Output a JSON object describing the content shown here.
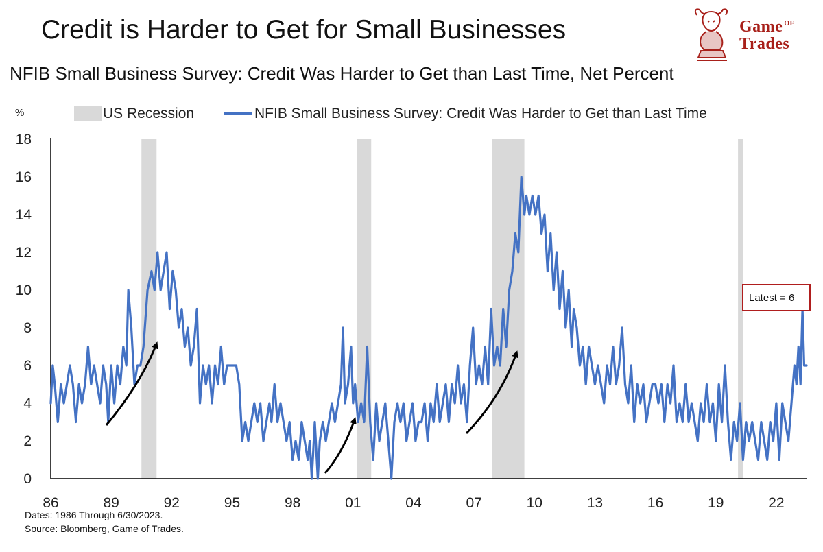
{
  "header": {
    "title": "Credit is Harder to Get for Small Businesses",
    "subtitle": "NFIB Small Business Survey: Credit Was Harder to Get than Last Time, Net Percent"
  },
  "logo": {
    "line1": "Game",
    "of": "OF",
    "line2": "Trades"
  },
  "footer": {
    "dates": "Dates: 1986 Through 6/30/2023.",
    "source": "Source: Bloomberg, Game of Trades."
  },
  "colors": {
    "series": "#4472c4",
    "recession": "#d9d9d9",
    "annotation_border": "#b01e1e",
    "logo": "#a8201a"
  },
  "chart_data": {
    "type": "line",
    "y_unit": "%",
    "ylim": [
      0,
      18
    ],
    "y_ticks": [
      "0",
      "2",
      "4",
      "6",
      "8",
      "10",
      "12",
      "14",
      "16",
      "18"
    ],
    "xlim": [
      1986,
      2023.5
    ],
    "x_ticks": [
      {
        "year": 1986,
        "label": "86"
      },
      {
        "year": 1989,
        "label": "89"
      },
      {
        "year": 1992,
        "label": "92"
      },
      {
        "year": 1995,
        "label": "95"
      },
      {
        "year": 1998,
        "label": "98"
      },
      {
        "year": 2001,
        "label": "01"
      },
      {
        "year": 2004,
        "label": "04"
      },
      {
        "year": 2007,
        "label": "07"
      },
      {
        "year": 2010,
        "label": "10"
      },
      {
        "year": 2013,
        "label": "13"
      },
      {
        "year": 2016,
        "label": "16"
      },
      {
        "year": 2019,
        "label": "19"
      },
      {
        "year": 2022,
        "label": "22"
      }
    ],
    "legend": [
      {
        "label": "US Recession",
        "kind": "band"
      },
      {
        "label": "NFIB Small Business Survey: Credit Was Harder to Get than Last Time",
        "kind": "line"
      }
    ],
    "legend_position": "top",
    "grid": false,
    "recessions": [
      {
        "start": 1990.5,
        "end": 1991.25
      },
      {
        "start": 2001.2,
        "end": 2001.9
      },
      {
        "start": 2007.9,
        "end": 2009.5
      },
      {
        "start": 2020.1,
        "end": 2020.35
      }
    ],
    "series": [
      {
        "name": "NFIB Small Business Survey: Credit Was Harder to Get than Last Time",
        "points": [
          [
            1986.0,
            4
          ],
          [
            1986.1,
            6
          ],
          [
            1986.2,
            5
          ],
          [
            1986.35,
            3
          ],
          [
            1986.5,
            5
          ],
          [
            1986.65,
            4
          ],
          [
            1986.8,
            5
          ],
          [
            1986.95,
            6
          ],
          [
            1987.1,
            5
          ],
          [
            1987.25,
            3
          ],
          [
            1987.4,
            5
          ],
          [
            1987.55,
            4
          ],
          [
            1987.7,
            5
          ],
          [
            1987.85,
            7
          ],
          [
            1988.0,
            5
          ],
          [
            1988.15,
            6
          ],
          [
            1988.3,
            5
          ],
          [
            1988.45,
            4
          ],
          [
            1988.6,
            6
          ],
          [
            1988.75,
            5
          ],
          [
            1988.85,
            3
          ],
          [
            1989.0,
            6
          ],
          [
            1989.15,
            4
          ],
          [
            1989.3,
            6
          ],
          [
            1989.45,
            5
          ],
          [
            1989.6,
            7
          ],
          [
            1989.75,
            6
          ],
          [
            1989.85,
            10
          ],
          [
            1990.0,
            8
          ],
          [
            1990.15,
            5
          ],
          [
            1990.3,
            6
          ],
          [
            1990.45,
            6
          ],
          [
            1990.6,
            7
          ],
          [
            1990.8,
            10
          ],
          [
            1991.0,
            11
          ],
          [
            1991.15,
            10
          ],
          [
            1991.3,
            12
          ],
          [
            1991.45,
            10
          ],
          [
            1991.6,
            11
          ],
          [
            1991.75,
            12
          ],
          [
            1991.9,
            9
          ],
          [
            1992.05,
            11
          ],
          [
            1992.2,
            10
          ],
          [
            1992.35,
            8
          ],
          [
            1992.5,
            9
          ],
          [
            1992.65,
            7
          ],
          [
            1992.8,
            8
          ],
          [
            1992.95,
            6
          ],
          [
            1993.1,
            7
          ],
          [
            1993.25,
            9
          ],
          [
            1993.4,
            4
          ],
          [
            1993.55,
            6
          ],
          [
            1993.7,
            5
          ],
          [
            1993.85,
            6
          ],
          [
            1994.0,
            4
          ],
          [
            1994.15,
            6
          ],
          [
            1994.3,
            5
          ],
          [
            1994.45,
            7
          ],
          [
            1994.6,
            5
          ],
          [
            1994.75,
            6
          ],
          [
            1994.9,
            6
          ],
          [
            1995.05,
            6
          ],
          [
            1995.2,
            6
          ],
          [
            1995.35,
            5
          ],
          [
            1995.5,
            2
          ],
          [
            1995.65,
            3
          ],
          [
            1995.8,
            2
          ],
          [
            1995.95,
            3
          ],
          [
            1996.1,
            4
          ],
          [
            1996.25,
            3
          ],
          [
            1996.4,
            4
          ],
          [
            1996.55,
            2
          ],
          [
            1996.7,
            3
          ],
          [
            1996.85,
            4
          ],
          [
            1996.95,
            3
          ],
          [
            1997.1,
            5
          ],
          [
            1997.25,
            3
          ],
          [
            1997.4,
            4
          ],
          [
            1997.55,
            3
          ],
          [
            1997.7,
            2
          ],
          [
            1997.85,
            3
          ],
          [
            1998.0,
            1
          ],
          [
            1998.15,
            2
          ],
          [
            1998.3,
            1
          ],
          [
            1998.45,
            3
          ],
          [
            1998.6,
            2
          ],
          [
            1998.75,
            1
          ],
          [
            1998.85,
            2
          ],
          [
            1998.95,
            0
          ],
          [
            1999.1,
            3
          ],
          [
            1999.25,
            0
          ],
          [
            1999.35,
            2
          ],
          [
            1999.5,
            3
          ],
          [
            1999.65,
            2
          ],
          [
            1999.8,
            3
          ],
          [
            1999.95,
            4
          ],
          [
            2000.1,
            3
          ],
          [
            2000.25,
            4
          ],
          [
            2000.4,
            5
          ],
          [
            2000.5,
            8
          ],
          [
            2000.6,
            4
          ],
          [
            2000.75,
            5
          ],
          [
            2000.9,
            7
          ],
          [
            2001.0,
            4
          ],
          [
            2001.1,
            5
          ],
          [
            2001.25,
            3
          ],
          [
            2001.4,
            4
          ],
          [
            2001.55,
            3
          ],
          [
            2001.7,
            7
          ],
          [
            2001.85,
            3
          ],
          [
            2002.0,
            1
          ],
          [
            2002.15,
            4
          ],
          [
            2002.3,
            2
          ],
          [
            2002.45,
            3
          ],
          [
            2002.6,
            4
          ],
          [
            2002.75,
            2
          ],
          [
            2002.9,
            0
          ],
          [
            2003.05,
            3
          ],
          [
            2003.2,
            4
          ],
          [
            2003.35,
            3
          ],
          [
            2003.5,
            4
          ],
          [
            2003.65,
            2
          ],
          [
            2003.8,
            3
          ],
          [
            2003.95,
            4
          ],
          [
            2004.1,
            2
          ],
          [
            2004.25,
            3
          ],
          [
            2004.4,
            3
          ],
          [
            2004.55,
            4
          ],
          [
            2004.7,
            2
          ],
          [
            2004.85,
            4
          ],
          [
            2005.0,
            3
          ],
          [
            2005.15,
            5
          ],
          [
            2005.3,
            3
          ],
          [
            2005.45,
            4
          ],
          [
            2005.6,
            5
          ],
          [
            2005.75,
            3
          ],
          [
            2005.9,
            5
          ],
          [
            2006.05,
            4
          ],
          [
            2006.2,
            6
          ],
          [
            2006.35,
            4
          ],
          [
            2006.5,
            5
          ],
          [
            2006.65,
            3
          ],
          [
            2006.8,
            6
          ],
          [
            2006.95,
            8
          ],
          [
            2007.1,
            5
          ],
          [
            2007.25,
            6
          ],
          [
            2007.4,
            5
          ],
          [
            2007.55,
            7
          ],
          [
            2007.7,
            5
          ],
          [
            2007.85,
            9
          ],
          [
            2008.0,
            6
          ],
          [
            2008.15,
            7
          ],
          [
            2008.3,
            6
          ],
          [
            2008.45,
            9
          ],
          [
            2008.6,
            7
          ],
          [
            2008.75,
            10
          ],
          [
            2008.9,
            11
          ],
          [
            2009.05,
            13
          ],
          [
            2009.2,
            12
          ],
          [
            2009.35,
            16
          ],
          [
            2009.5,
            14
          ],
          [
            2009.6,
            15
          ],
          [
            2009.75,
            14
          ],
          [
            2009.9,
            15
          ],
          [
            2010.05,
            14
          ],
          [
            2010.2,
            15
          ],
          [
            2010.35,
            13
          ],
          [
            2010.5,
            14
          ],
          [
            2010.65,
            11
          ],
          [
            2010.8,
            13
          ],
          [
            2010.95,
            10
          ],
          [
            2011.1,
            12
          ],
          [
            2011.25,
            9
          ],
          [
            2011.4,
            11
          ],
          [
            2011.55,
            8
          ],
          [
            2011.7,
            10
          ],
          [
            2011.85,
            7
          ],
          [
            2011.95,
            9
          ],
          [
            2012.1,
            8
          ],
          [
            2012.25,
            6
          ],
          [
            2012.4,
            7
          ],
          [
            2012.55,
            5
          ],
          [
            2012.7,
            7
          ],
          [
            2012.85,
            6
          ],
          [
            2013.0,
            5
          ],
          [
            2013.15,
            6
          ],
          [
            2013.3,
            5
          ],
          [
            2013.45,
            4
          ],
          [
            2013.6,
            6
          ],
          [
            2013.75,
            5
          ],
          [
            2013.9,
            7
          ],
          [
            2014.05,
            5
          ],
          [
            2014.2,
            6
          ],
          [
            2014.35,
            8
          ],
          [
            2014.5,
            5
          ],
          [
            2014.65,
            4
          ],
          [
            2014.8,
            6
          ],
          [
            2014.95,
            3
          ],
          [
            2015.1,
            5
          ],
          [
            2015.25,
            4
          ],
          [
            2015.4,
            5
          ],
          [
            2015.55,
            3
          ],
          [
            2015.7,
            4
          ],
          [
            2015.85,
            5
          ],
          [
            2016.0,
            5
          ],
          [
            2016.15,
            4
          ],
          [
            2016.3,
            5
          ],
          [
            2016.45,
            3
          ],
          [
            2016.6,
            5
          ],
          [
            2016.75,
            4
          ],
          [
            2016.9,
            6
          ],
          [
            2017.05,
            3
          ],
          [
            2017.2,
            4
          ],
          [
            2017.35,
            3
          ],
          [
            2017.5,
            5
          ],
          [
            2017.65,
            3
          ],
          [
            2017.8,
            4
          ],
          [
            2017.95,
            3
          ],
          [
            2018.1,
            2
          ],
          [
            2018.25,
            4
          ],
          [
            2018.4,
            3
          ],
          [
            2018.55,
            5
          ],
          [
            2018.7,
            3
          ],
          [
            2018.85,
            4
          ],
          [
            2019.0,
            2
          ],
          [
            2019.15,
            5
          ],
          [
            2019.3,
            3
          ],
          [
            2019.45,
            6
          ],
          [
            2019.6,
            3
          ],
          [
            2019.75,
            1
          ],
          [
            2019.9,
            3
          ],
          [
            2020.05,
            2
          ],
          [
            2020.2,
            4
          ],
          [
            2020.35,
            1
          ],
          [
            2020.5,
            3
          ],
          [
            2020.65,
            2
          ],
          [
            2020.8,
            3
          ],
          [
            2020.95,
            2
          ],
          [
            2021.1,
            1
          ],
          [
            2021.25,
            3
          ],
          [
            2021.4,
            2
          ],
          [
            2021.55,
            1
          ],
          [
            2021.7,
            3
          ],
          [
            2021.85,
            2
          ],
          [
            2022.0,
            4
          ],
          [
            2022.15,
            1
          ],
          [
            2022.3,
            4
          ],
          [
            2022.45,
            3
          ],
          [
            2022.6,
            2
          ],
          [
            2022.75,
            4
          ],
          [
            2022.9,
            6
          ],
          [
            2023.0,
            5
          ],
          [
            2023.1,
            7
          ],
          [
            2023.2,
            5
          ],
          [
            2023.3,
            9
          ],
          [
            2023.38,
            6
          ],
          [
            2023.5,
            6
          ]
        ]
      }
    ],
    "annotation": {
      "label": "Latest = 6"
    }
  }
}
